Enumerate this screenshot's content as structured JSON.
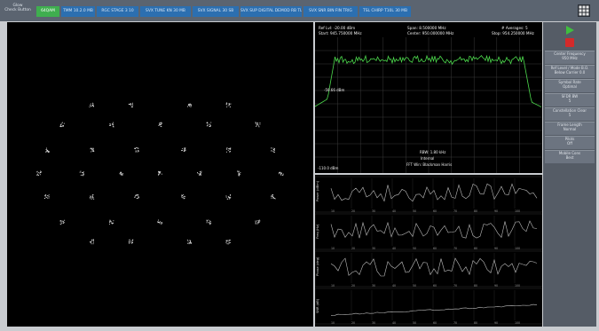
{
  "app": {
    "top_left_label_line1": "Glow",
    "top_left_label_line2": "Check Button",
    "tabs": [
      {
        "label": "64QAM",
        "active": true
      },
      {
        "label": "TMM 10.2.0 MB",
        "active": false
      },
      {
        "label": "RGC STAGE 3 10",
        "active": false
      },
      {
        "label": "SVX TUNE KN 30 MB",
        "active": false
      },
      {
        "label": "SVX SIGNAL 30 SB",
        "active": false
      },
      {
        "label": "SVX SUP DIGITAL DEMOD RB TL",
        "active": false
      },
      {
        "label": "SVX SNR BIN FIN TRIG",
        "active": false
      },
      {
        "label": "TSL CHIRP T10L 30 MB",
        "active": false
      }
    ],
    "grid_icon": "grid-icon"
  },
  "spectrum": {
    "ref_level": "Ref Lvl: -20.00 dBm",
    "start": "Start: 945.750000 MHz",
    "span": "Span: 8.500000 MHz",
    "center": "Center: 950.000000 MHz",
    "averages": "# Averages: 5",
    "stop": "Stop: 954.250000 MHz",
    "marker": "-59.66 dBm",
    "rbw": "RBW: 1.80 kHz",
    "mode": "Internal",
    "window": "FFT Win: Blackman Harris",
    "bottom_left": "-110.0 dBm"
  },
  "sidepanel": {
    "play_icon": "play-icon",
    "stop_icon": "stop-icon",
    "buttons": [
      {
        "line1": "Center Frequency",
        "line2": "950 MHz"
      },
      {
        "line1": "Ref Level / Mode B.O.",
        "line2": "Below Carrier 0.0"
      },
      {
        "line1": "Symbol Rate",
        "line2": "Optimal"
      },
      {
        "line1": "SFDR BW",
        "line2": "5"
      },
      {
        "line1": "Constellation Clear",
        "line2": "5"
      },
      {
        "line1": "Frame Length",
        "line2": "Normal"
      },
      {
        "line1": "Pilots",
        "line2": "Off"
      },
      {
        "line1": "Mobile Cons",
        "line2": "Best"
      }
    ]
  },
  "traces": {
    "panel_labels": [
      "Power (dBm)",
      "Freq (Hz)",
      "Phase (deg)",
      "SNR (dB)"
    ],
    "x_ticks": [
      "10",
      "20",
      "30",
      "40",
      "50",
      "60",
      "70",
      "80",
      "90",
      "100"
    ]
  },
  "constellation": {
    "points": [
      [
        -3.5,
        3.5
      ],
      [
        -1.5,
        3.5
      ],
      [
        1.5,
        3.5
      ],
      [
        3.5,
        3.5
      ],
      [
        -5,
        2.5
      ],
      [
        -2.5,
        2.5
      ],
      [
        0,
        2.5
      ],
      [
        2.5,
        2.5
      ],
      [
        5,
        2.5
      ],
      [
        -5.8,
        1.2
      ],
      [
        -3.5,
        1.2
      ],
      [
        -1.2,
        1.2
      ],
      [
        1.2,
        1.2
      ],
      [
        3.5,
        1.2
      ],
      [
        5.8,
        1.2
      ],
      [
        -6.2,
        0
      ],
      [
        -4,
        0
      ],
      [
        -2,
        0
      ],
      [
        0,
        0
      ],
      [
        2,
        0
      ],
      [
        4,
        0
      ],
      [
        6.2,
        0
      ],
      [
        -5.8,
        -1.2
      ],
      [
        -3.5,
        -1.2
      ],
      [
        -1.2,
        -1.2
      ],
      [
        1.2,
        -1.2
      ],
      [
        3.5,
        -1.2
      ],
      [
        5.8,
        -1.2
      ],
      [
        -5,
        -2.5
      ],
      [
        -2.5,
        -2.5
      ],
      [
        0,
        -2.5
      ],
      [
        2.5,
        -2.5
      ],
      [
        5,
        -2.5
      ],
      [
        -3.5,
        -3.5
      ],
      [
        -1.5,
        -3.5
      ],
      [
        1.5,
        -3.5
      ],
      [
        3.5,
        -3.5
      ]
    ]
  }
}
